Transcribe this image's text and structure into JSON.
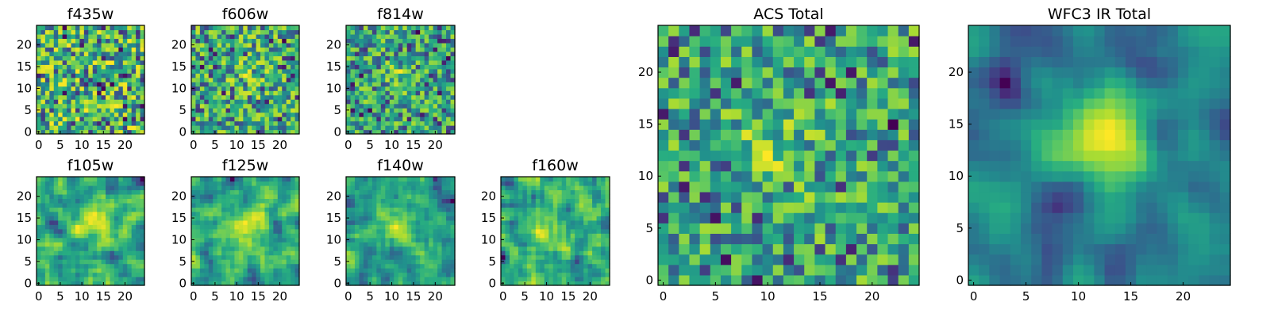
{
  "figure": {
    "colormap": "viridis",
    "colormap_stops": [
      "#440154",
      "#3b528b",
      "#21918c",
      "#5ec962",
      "#fde725"
    ]
  },
  "chart_data": [
    {
      "type": "heatmap",
      "title": "f435w",
      "grid": [
        25,
        25
      ],
      "xticks": [
        0,
        5,
        10,
        15,
        20
      ],
      "yticks": [
        0,
        5,
        10,
        15,
        20
      ],
      "xlim": [
        0,
        24
      ],
      "ylim": [
        0,
        24
      ],
      "colormap": "viridis",
      "pattern": "noise"
    },
    {
      "type": "heatmap",
      "title": "f606w",
      "grid": [
        25,
        25
      ],
      "xticks": [
        0,
        5,
        10,
        15,
        20
      ],
      "yticks": [
        0,
        5,
        10,
        15,
        20
      ],
      "xlim": [
        0,
        24
      ],
      "ylim": [
        0,
        24
      ],
      "colormap": "viridis",
      "pattern": "noise with faint central peak"
    },
    {
      "type": "heatmap",
      "title": "f814w",
      "grid": [
        25,
        25
      ],
      "xticks": [
        0,
        5,
        10,
        15,
        20
      ],
      "yticks": [
        0,
        5,
        10,
        15,
        20
      ],
      "xlim": [
        0,
        24
      ],
      "ylim": [
        0,
        24
      ],
      "colormap": "viridis",
      "pattern": "noise with central peak"
    },
    {
      "type": "heatmap",
      "title": "f105w",
      "grid": [
        25,
        25
      ],
      "xticks": [
        0,
        5,
        10,
        15,
        20
      ],
      "yticks": [
        0,
        5,
        10,
        15,
        20
      ],
      "xlim": [
        0,
        24
      ],
      "ylim": [
        0,
        24
      ],
      "colormap": "viridis",
      "pattern": "correlated noise with central peak"
    },
    {
      "type": "heatmap",
      "title": "f125w",
      "grid": [
        25,
        25
      ],
      "xticks": [
        0,
        5,
        10,
        15,
        20
      ],
      "yticks": [
        0,
        5,
        10,
        15,
        20
      ],
      "xlim": [
        0,
        24
      ],
      "ylim": [
        0,
        24
      ],
      "colormap": "viridis",
      "pattern": "correlated noise with central peak"
    },
    {
      "type": "heatmap",
      "title": "f140w",
      "grid": [
        25,
        25
      ],
      "xticks": [
        0,
        5,
        10,
        15,
        20
      ],
      "yticks": [
        0,
        5,
        10,
        15,
        20
      ],
      "xlim": [
        0,
        24
      ],
      "ylim": [
        0,
        24
      ],
      "colormap": "viridis",
      "pattern": "correlated noise with central peak"
    },
    {
      "type": "heatmap",
      "title": "f160w",
      "grid": [
        25,
        25
      ],
      "xticks": [
        0,
        5,
        10,
        15,
        20
      ],
      "yticks": [
        0,
        5,
        10,
        15,
        20
      ],
      "xlim": [
        0,
        24
      ],
      "ylim": [
        0,
        24
      ],
      "colormap": "viridis",
      "pattern": "correlated noise with central peak"
    },
    {
      "type": "heatmap",
      "title": "ACS Total",
      "grid": [
        25,
        25
      ],
      "xticks": [
        0,
        5,
        10,
        15,
        20
      ],
      "yticks": [
        0,
        5,
        10,
        15,
        20
      ],
      "xlim": [
        0,
        24
      ],
      "ylim": [
        0,
        24
      ],
      "colormap": "viridis",
      "pattern": "noise with central peak near (11,13)"
    },
    {
      "type": "heatmap",
      "title": "WFC3 IR Total",
      "grid": [
        25,
        25
      ],
      "xticks": [
        0,
        5,
        10,
        15,
        20
      ],
      "yticks": [
        0,
        5,
        10,
        15,
        20
      ],
      "xlim": [
        0,
        24
      ],
      "ylim": [
        0,
        24
      ],
      "colormap": "viridis",
      "pattern": "smooth central peak near (12,13)"
    }
  ]
}
